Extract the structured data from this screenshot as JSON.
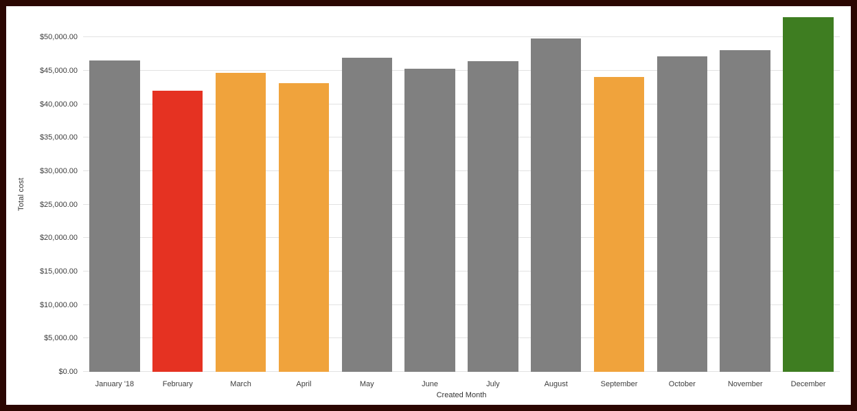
{
  "frame": {
    "border_color": "#2b0702",
    "background": "#ffffff",
    "gridline_color": "#e2e2e2"
  },
  "chart_data": {
    "type": "bar",
    "title": "",
    "xlabel": "Created Month",
    "ylabel": "Total cost",
    "categories": [
      "January '18",
      "February",
      "March",
      "April",
      "May",
      "June",
      "July",
      "August",
      "September",
      "October",
      "November",
      "December"
    ],
    "values": [
      46500,
      42000,
      44700,
      43100,
      46900,
      45300,
      46400,
      49800,
      44100,
      47100,
      48100,
      53000
    ],
    "bar_colors": [
      "#808080",
      "#e53222",
      "#f0a33c",
      "#f0a33c",
      "#808080",
      "#808080",
      "#808080",
      "#808080",
      "#f0a33c",
      "#808080",
      "#808080",
      "#3e7d21"
    ],
    "color_legend": {
      "default": "#808080",
      "alert": "#e53222",
      "warning": "#f0a33c",
      "good": "#3e7d21"
    },
    "ylim": [
      0,
      53000
    ],
    "yticks": [
      0,
      5000,
      10000,
      15000,
      20000,
      25000,
      30000,
      35000,
      40000,
      45000,
      50000
    ],
    "ytick_labels": [
      "$0.00",
      "$5,000.00",
      "$10,000.00",
      "$15,000.00",
      "$20,000.00",
      "$25,000.00",
      "$30,000.00",
      "$35,000.00",
      "$40,000.00",
      "$45,000.00",
      "$50,000.00"
    ],
    "grid": true,
    "legend": false
  }
}
